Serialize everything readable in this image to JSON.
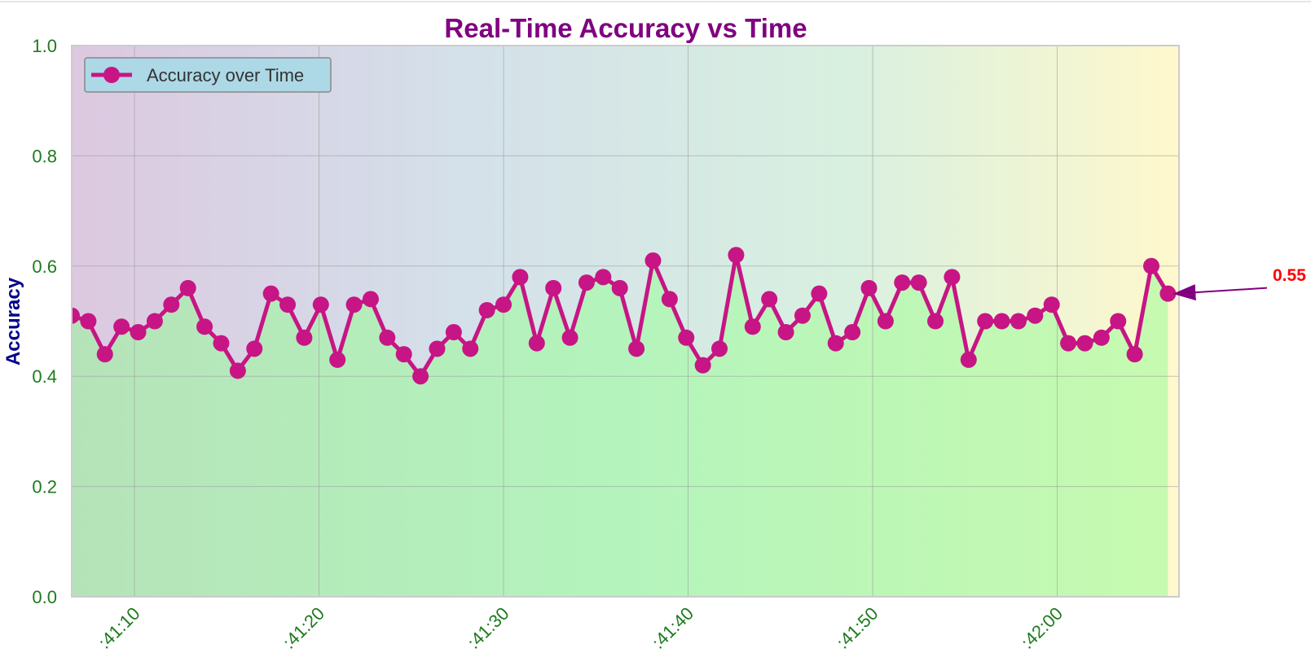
{
  "chart_data": {
    "type": "line",
    "title": "Real-Time Accuracy vs Time",
    "xlabel": "",
    "ylabel": "Accuracy",
    "ylim": [
      0.0,
      1.0
    ],
    "y_ticks": [
      "0.0",
      "0.2",
      "0.4",
      "0.6",
      "0.8",
      "1.0"
    ],
    "x_ticks": [
      {
        "t": 10,
        "label": ":41:10"
      },
      {
        "t": 20,
        "label": ":41:20"
      },
      {
        "t": 30,
        "label": ":41:30"
      },
      {
        "t": 40,
        "label": ":41:40"
      },
      {
        "t": 50,
        "label": ":41:50"
      },
      {
        "t": 60,
        "label": ":42:00"
      }
    ],
    "xlim_seconds_after_41_00": [
      6.6,
      66.6
    ],
    "grid": true,
    "legend_position": "top-left",
    "background": "horizontal gradient purple to yellow, filled green area under line",
    "colors": {
      "line": "#c71585",
      "marker": "#c71585",
      "fill": "#b3f5b3",
      "title": "#800080",
      "ylabel": "#00008b",
      "ticks": "#1e7b1e",
      "annotation_text": "#ff0000",
      "annotation_arrow": "#800080",
      "legend_bg": "#add8e6"
    },
    "series": [
      {
        "name": "Accuracy over Time",
        "times_seconds_after_41_00": [
          6.6,
          7.5,
          8.4,
          9.3,
          10.2,
          11.1,
          12,
          12.9,
          13.8,
          14.7,
          15.6,
          16.5,
          17.4,
          18.3,
          19.2,
          20.1,
          21,
          21.9,
          22.8,
          23.7,
          24.6,
          25.5,
          26.4,
          27.3,
          28.2,
          29.1,
          30,
          30.9,
          31.8,
          32.7,
          33.6,
          34.5,
          35.4,
          36.3,
          37.2,
          38.1,
          39,
          39.9,
          40.8,
          41.7,
          42.6,
          43.5,
          44.4,
          45.3,
          46.2,
          47.1,
          48,
          48.9,
          49.8,
          50.7,
          51.6,
          52.5,
          53.4,
          54.3,
          55.2,
          56.1,
          57,
          57.9,
          58.8,
          59.7,
          60.6,
          61.5,
          62.4,
          63.3,
          64.2,
          65.1,
          66
        ],
        "values": [
          0.51,
          0.5,
          0.44,
          0.49,
          0.48,
          0.5,
          0.53,
          0.56,
          0.49,
          0.46,
          0.41,
          0.45,
          0.55,
          0.53,
          0.47,
          0.53,
          0.43,
          0.53,
          0.54,
          0.47,
          0.44,
          0.4,
          0.45,
          0.48,
          0.45,
          0.52,
          0.53,
          0.58,
          0.46,
          0.56,
          0.47,
          0.57,
          0.58,
          0.56,
          0.45,
          0.61,
          0.54,
          0.47,
          0.42,
          0.45,
          0.62,
          0.49,
          0.54,
          0.48,
          0.51,
          0.55,
          0.46,
          0.48,
          0.56,
          0.5,
          0.57,
          0.57,
          0.5,
          0.58,
          0.43,
          0.5,
          0.5,
          0.5,
          0.51,
          0.53,
          0.46,
          0.46,
          0.47,
          0.5,
          0.44,
          0.6,
          0.55
        ]
      }
    ],
    "annotation": {
      "text": "0.55"
    }
  }
}
